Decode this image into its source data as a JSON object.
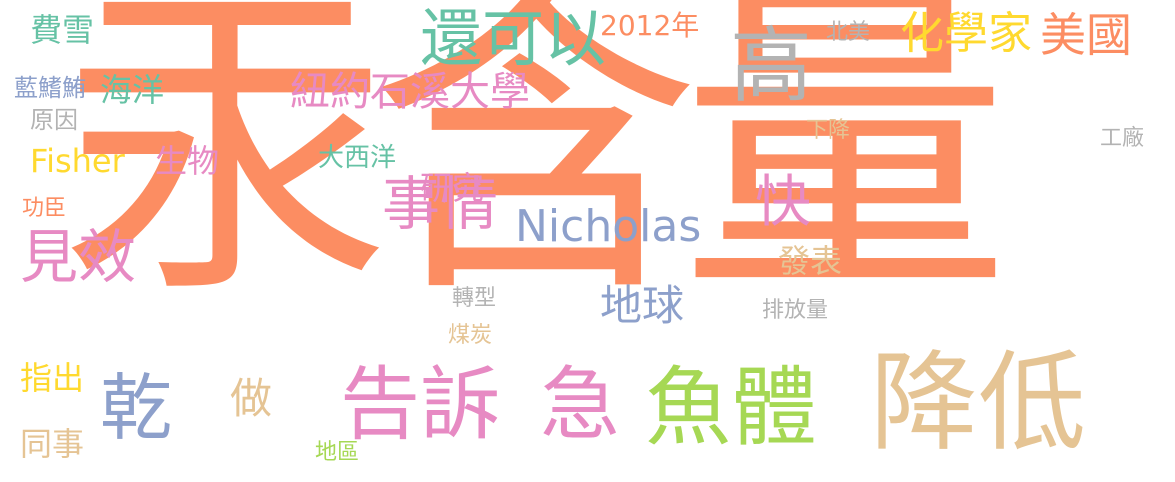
{
  "words": [
    {
      "id": "w01",
      "text": "汞含量",
      "color": "#fc8d62"
    },
    {
      "id": "w02",
      "text": "降低",
      "color": "#e5c494"
    },
    {
      "id": "w03",
      "text": "魚體",
      "color": "#a6d854"
    },
    {
      "id": "w04",
      "text": "告訴",
      "color": "#e78ac3"
    },
    {
      "id": "w05",
      "text": "急",
      "color": "#e78ac3"
    },
    {
      "id": "w06",
      "text": "乾",
      "color": "#8da0cb"
    },
    {
      "id": "w07",
      "text": "高",
      "color": "#b3b3b3"
    },
    {
      "id": "w08",
      "text": "還可以",
      "color": "#66c2a5"
    },
    {
      "id": "w09",
      "text": "事情",
      "color": "#e78ac3"
    },
    {
      "id": "w10",
      "text": "見效",
      "color": "#e78ac3"
    },
    {
      "id": "w11",
      "text": "快",
      "color": "#e78ac3"
    },
    {
      "id": "w12",
      "text": "美國",
      "color": "#fc8d62"
    },
    {
      "id": "w13",
      "text": "化學家",
      "color": "#ffd92f"
    },
    {
      "id": "w14",
      "text": "紐約石溪大學",
      "color": "#e78ac3"
    },
    {
      "id": "w15",
      "text": "Nicholas",
      "color": "#8da0cb"
    },
    {
      "id": "w16",
      "text": "地球",
      "color": "#8da0cb"
    },
    {
      "id": "w17",
      "text": "做",
      "color": "#e5c494"
    },
    {
      "id": "w18",
      "text": "費雪",
      "color": "#66c2a5"
    },
    {
      "id": "w19",
      "text": "海洋",
      "color": "#66c2a5"
    },
    {
      "id": "w20",
      "text": "2012年",
      "color": "#fc8d62"
    },
    {
      "id": "w21",
      "text": "Fisher",
      "color": "#ffd92f"
    },
    {
      "id": "w22",
      "text": "生物",
      "color": "#e78ac3"
    },
    {
      "id": "w23",
      "text": "研究",
      "color": "#e78ac3"
    },
    {
      "id": "w24",
      "text": "大西洋",
      "color": "#66c2a5"
    },
    {
      "id": "w25",
      "text": "發表",
      "color": "#e5c494"
    },
    {
      "id": "w26",
      "text": "指出",
      "color": "#ffd92f"
    },
    {
      "id": "w27",
      "text": "同事",
      "color": "#e5c494"
    },
    {
      "id": "w28",
      "text": "藍鰭鮪",
      "color": "#8da0cb"
    },
    {
      "id": "w29",
      "text": "原因",
      "color": "#b3b3b3"
    },
    {
      "id": "w30",
      "text": "功臣",
      "color": "#fc8d62"
    },
    {
      "id": "w31",
      "text": "北美",
      "color": "#b3b3b3"
    },
    {
      "id": "w32",
      "text": "下降",
      "color": "#e5c494"
    },
    {
      "id": "w33",
      "text": "工廠",
      "color": "#b3b3b3"
    },
    {
      "id": "w34",
      "text": "排放量",
      "color": "#b3b3b3"
    },
    {
      "id": "w35",
      "text": "轉型",
      "color": "#b3b3b3"
    },
    {
      "id": "w36",
      "text": "煤炭",
      "color": "#e5c494"
    },
    {
      "id": "w37",
      "text": "地區",
      "color": "#a6d854"
    }
  ]
}
